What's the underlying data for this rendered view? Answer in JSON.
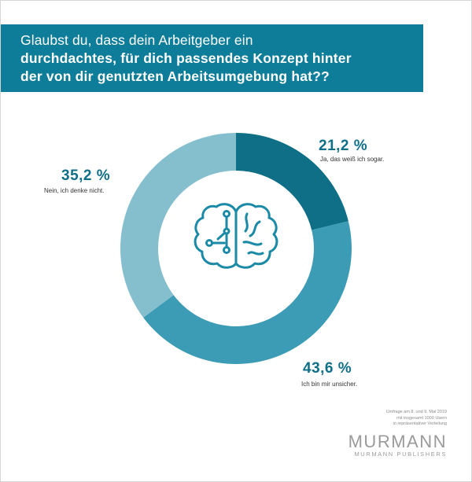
{
  "title": {
    "line1": "Glaubst du, dass dein Arbeitgeber ein",
    "line2": "durchdachtes, für dich passendes Konzept hinter",
    "line3": "der von dir genutzten Arbeitsumgebung hat??"
  },
  "chart_data": {
    "type": "pie",
    "donut": true,
    "series": [
      {
        "name": "Ja, das weiß ich sogar.",
        "value": 21.2,
        "value_label": "21,2 %",
        "color": "#0e6f87"
      },
      {
        "name": "Ich bin mir unsicher.",
        "value": 43.6,
        "value_label": "43,6 %",
        "color": "#3c9cb5"
      },
      {
        "name": "Nein, ich denke nicht.",
        "value": 35.2,
        "value_label": "35,2 %",
        "color": "#85bfce"
      }
    ],
    "center_icon": "brain-circuit-icon",
    "legend": "labels-next-to-slices"
  },
  "footnote": {
    "line1": "Umfrage am 8. und 9. Mai 2019",
    "line2": "mit insgesamt 1000 Usern",
    "line3": "in repräsentativer Verteilung"
  },
  "logo": {
    "main": "MURMANN",
    "sub": "MURMANN PUBLISHERS"
  },
  "colors": {
    "banner": "#0e7d9a",
    "accent": "#0e6f87",
    "icon": "#1a8aa6"
  }
}
